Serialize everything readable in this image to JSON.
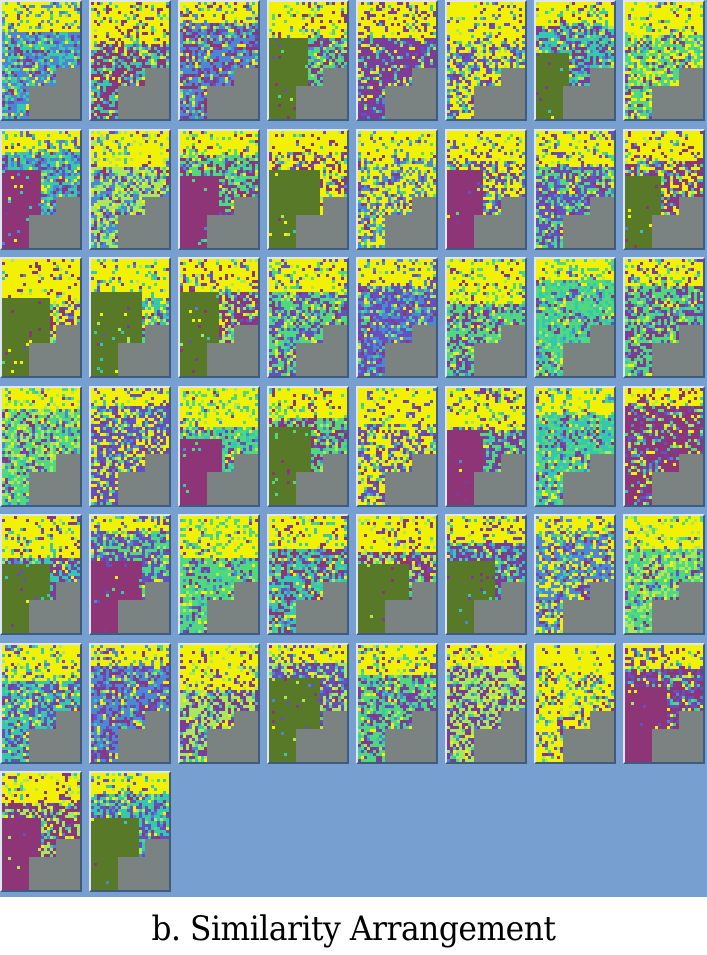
{
  "caption": "b. Similarity Arrangement",
  "colors": {
    "background": "#779fd0",
    "frame_light": "#dde6f2",
    "frame_dark": "#3f5c80",
    "yellow": "#f2f200",
    "lightgreen": "#a8e85a",
    "green": "#4fd87e",
    "teal": "#36c7b0",
    "blue": "#4e86d6",
    "indigo": "#6650c0",
    "purple": "#7a3d9c",
    "magenta": "#8e3578",
    "olive": "#587a28",
    "gray": "#7a8282"
  },
  "grid": {
    "columns": 8,
    "rows": 7,
    "count": 50
  }
}
